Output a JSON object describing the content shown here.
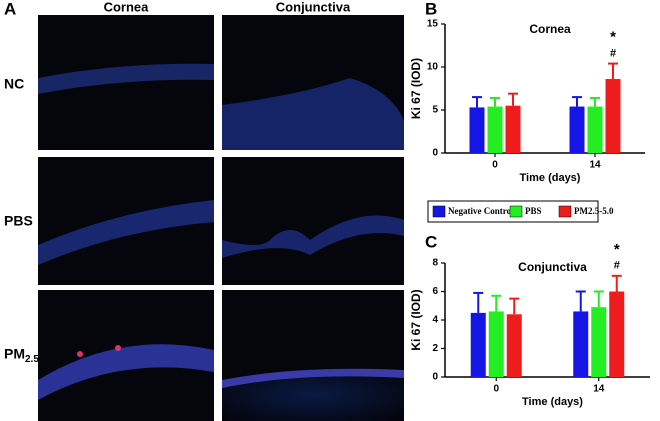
{
  "figure": {
    "panel_a": "A",
    "col_labels": [
      "Cornea",
      "Conjunctiva"
    ],
    "row_labels": [
      "NC",
      "PBS",
      "PM"
    ],
    "row_label_sub": "2.5"
  },
  "chart_data": [
    {
      "type": "bar",
      "panel": "B",
      "title": "Cornea",
      "x_label": "Time (days)",
      "y_label": "Ki 67 (IOD)",
      "categories": [
        "0",
        "14"
      ],
      "ylim": [
        0,
        15
      ],
      "yticks": [
        0,
        5,
        10,
        15
      ],
      "series": [
        {
          "name": "Negative Control",
          "color": "#1515e6",
          "values": [
            5.3,
            5.4
          ],
          "errors": [
            1.2,
            1.1
          ]
        },
        {
          "name": "PBS",
          "color": "#22ee22",
          "values": [
            5.4,
            5.4
          ],
          "errors": [
            1.0,
            1.0
          ]
        },
        {
          "name": "PM2.5-5.0",
          "color": "#ee1c1c",
          "values": [
            5.5,
            8.6
          ],
          "errors": [
            1.4,
            1.8
          ]
        }
      ],
      "annotations": [
        "*",
        "#"
      ]
    },
    {
      "type": "bar",
      "panel": "C",
      "title": "Conjunctiva",
      "x_label": "Time (days)",
      "y_label": "Ki 67 (IOD)",
      "categories": [
        "0",
        "14"
      ],
      "ylim": [
        0,
        8
      ],
      "yticks": [
        0,
        2,
        4,
        6,
        8
      ],
      "series": [
        {
          "name": "Negative Control",
          "color": "#1515e6",
          "values": [
            4.5,
            4.6
          ],
          "errors": [
            1.4,
            1.4
          ]
        },
        {
          "name": "PBS",
          "color": "#22ee22",
          "values": [
            4.6,
            4.9
          ],
          "errors": [
            1.1,
            1.1
          ]
        },
        {
          "name": "PM2.5-5.0",
          "color": "#ee1c1c",
          "values": [
            4.4,
            6.0
          ],
          "errors": [
            1.1,
            1.1
          ]
        }
      ],
      "annotations": [
        "*",
        "#"
      ]
    }
  ]
}
